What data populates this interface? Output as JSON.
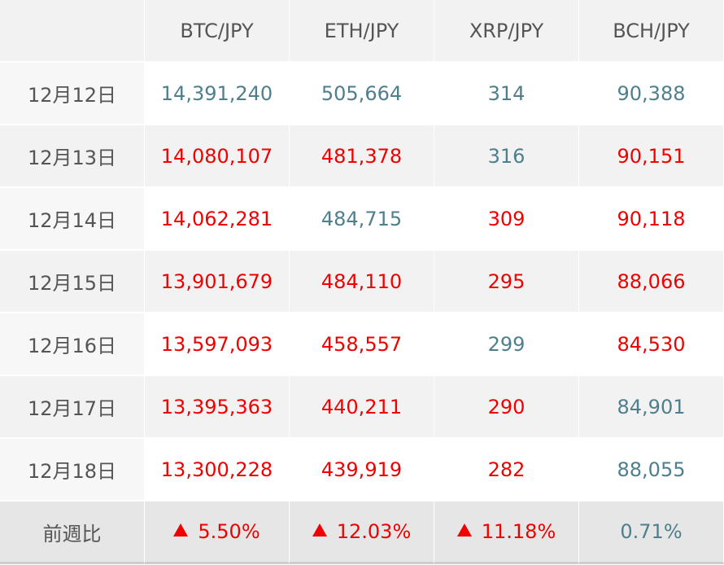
{
  "header": {
    "date_col": "",
    "pairs": [
      "BTC/JPY",
      "ETH/JPY",
      "XRP/JPY",
      "BCH/JPY"
    ]
  },
  "rows": [
    {
      "date": "12月12日",
      "values": [
        "14,391,240",
        "505,664",
        "314",
        "90,388"
      ],
      "trend": [
        "down",
        "down",
        "down",
        "down"
      ]
    },
    {
      "date": "12月13日",
      "values": [
        "14,080,107",
        "481,378",
        "316",
        "90,151"
      ],
      "trend": [
        "up",
        "up",
        "down",
        "up"
      ]
    },
    {
      "date": "12月14日",
      "values": [
        "14,062,281",
        "484,715",
        "309",
        "90,118"
      ],
      "trend": [
        "up",
        "down",
        "up",
        "up"
      ]
    },
    {
      "date": "12月15日",
      "values": [
        "13,901,679",
        "484,110",
        "295",
        "88,066"
      ],
      "trend": [
        "up",
        "up",
        "up",
        "up"
      ]
    },
    {
      "date": "12月16日",
      "values": [
        "13,597,093",
        "458,557",
        "299",
        "84,530"
      ],
      "trend": [
        "up",
        "up",
        "down",
        "up"
      ]
    },
    {
      "date": "12月17日",
      "values": [
        "13,395,363",
        "440,211",
        "290",
        "84,901"
      ],
      "trend": [
        "up",
        "up",
        "up",
        "down"
      ]
    },
    {
      "date": "12月18日",
      "values": [
        "13,300,228",
        "439,919",
        "282",
        "88,055"
      ],
      "trend": [
        "up",
        "up",
        "up",
        "down"
      ]
    }
  ],
  "summary": {
    "label": "前週比",
    "values": [
      "5.50%",
      "12.03%",
      "11.18%",
      "0.71%"
    ],
    "arrow": [
      true,
      true,
      true,
      false
    ],
    "trend": [
      "up",
      "up",
      "up",
      "down"
    ]
  },
  "colors": {
    "up": "#f00000",
    "down": "#4e7f8c",
    "label": "#555555",
    "row_alt": "#f2f2f2",
    "summary_bg": "#e6e6e6"
  },
  "icons": {
    "summary_arrow": "triangle-up-icon"
  }
}
